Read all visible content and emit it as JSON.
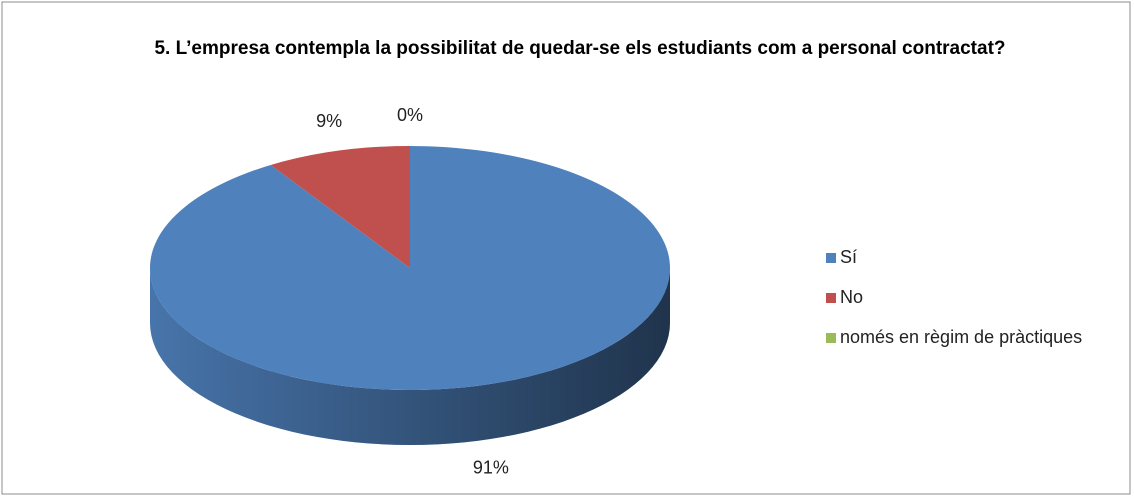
{
  "chart_data": {
    "type": "pie",
    "title": "5. L’empresa contempla la possibilitat de quedar-se els estudiants com a personal contractat?",
    "categories": [
      "Sí",
      "No",
      "només en règim de pràctiques"
    ],
    "values": [
      91,
      9,
      0
    ],
    "value_labels": [
      "91%",
      "9%",
      "0%"
    ],
    "colors": [
      "#4f81bd",
      "#c0504d",
      "#9bbb59"
    ],
    "legend": "right"
  }
}
